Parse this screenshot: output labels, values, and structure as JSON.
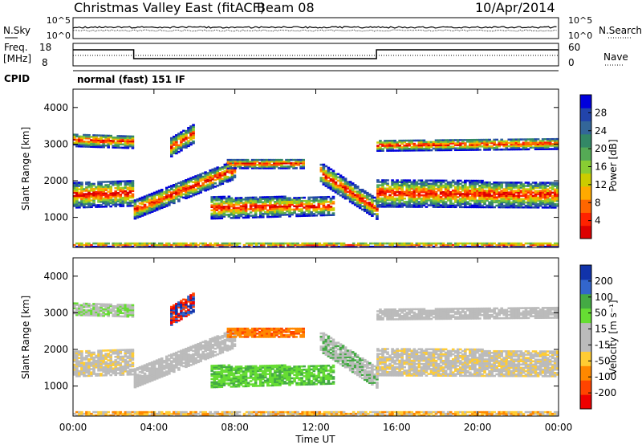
{
  "header": {
    "title": "Christmas Valley East (fitACF)",
    "beam": "Beam 08",
    "date": "10/Apr/2014"
  },
  "top_panels": {
    "nsky_label": "N.Sky",
    "nsky_ticks": [
      "10^5",
      "10^0"
    ],
    "nsearch_label": "N.Search",
    "nsearch_ticks": [
      "10^5",
      "10^0"
    ],
    "freq_label_1": "Freq.",
    "freq_label_2": "[MHz]",
    "freq_ticks": [
      "18",
      "8"
    ],
    "nave_label": "Nave",
    "nave_ticks": [
      "60",
      "0"
    ],
    "cpid_label": "CPID",
    "cpid_value": "normal (fast) 151 IF"
  },
  "chart_data": [
    {
      "type": "heatmap",
      "name": "power",
      "ylabel": "Slant Range [km]",
      "y_ticks": [
        "4000",
        "3000",
        "2000",
        "1000"
      ],
      "ylim": [
        180,
        4500
      ],
      "colorbar_label": "Power [dB]",
      "colorbar_ticks": [
        "28",
        "24",
        "20",
        "16",
        "12",
        "8",
        "4"
      ],
      "colorbar_colors": [
        "#0000dd",
        "#2244aa",
        "#336699",
        "#338866",
        "#55aa55",
        "#88cc33",
        "#cccc00",
        "#ffaa00",
        "#ff6600",
        "#ff2200",
        "#dd0000"
      ]
    },
    {
      "type": "heatmap",
      "name": "velocity",
      "ylabel": "Slant Range [km]",
      "y_ticks": [
        "4000",
        "3000",
        "2000",
        "1000"
      ],
      "ylim": [
        180,
        4500
      ],
      "colorbar_label": "Velocity [m s⁻¹]",
      "colorbar_ticks": [
        "200",
        "100",
        "50",
        "15",
        "-15",
        "-50",
        "-100",
        "-200"
      ],
      "colorbar_colors": [
        "#1133aa",
        "#3366cc",
        "#44aa44",
        "#66dd33",
        "#bbbbbb",
        "#bbbbbb",
        "#ffcc33",
        "#ff8800",
        "#ff4400",
        "#ee0000"
      ]
    }
  ],
  "x_axis": {
    "ticks": [
      "00:00",
      "04:00",
      "08:00",
      "12:00",
      "16:00",
      "20:00",
      "00:00"
    ],
    "label": "Time UT"
  }
}
